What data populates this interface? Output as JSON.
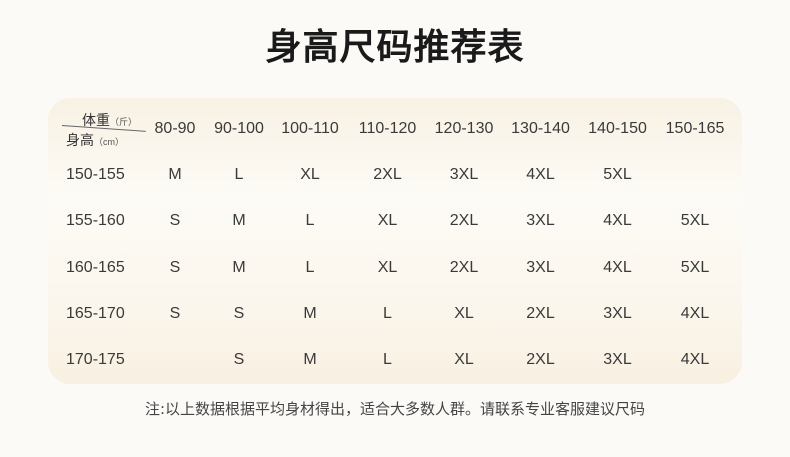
{
  "title": "身高尺码推荐表",
  "table": {
    "corner": {
      "weight_label": "体重",
      "weight_unit": "（斤）",
      "height_label": "身高",
      "height_unit": "（cm）"
    },
    "columns": [
      "80-90",
      "90-100",
      "100-110",
      "110-120",
      "120-130",
      "130-140",
      "140-150",
      "150-165"
    ],
    "rows": [
      {
        "height": "150-155",
        "sizes": [
          "M",
          "L",
          "XL",
          "2XL",
          "3XL",
          "4XL",
          "5XL",
          ""
        ]
      },
      {
        "height": "155-160",
        "sizes": [
          "S",
          "M",
          "L",
          "XL",
          "2XL",
          "3XL",
          "4XL",
          "5XL"
        ]
      },
      {
        "height": "160-165",
        "sizes": [
          "S",
          "M",
          "L",
          "XL",
          "2XL",
          "3XL",
          "4XL",
          "5XL"
        ]
      },
      {
        "height": "165-170",
        "sizes": [
          "S",
          "S",
          "M",
          "L",
          "XL",
          "2XL",
          "3XL",
          "4XL"
        ]
      },
      {
        "height": "170-175",
        "sizes": [
          "",
          "S",
          "M",
          "L",
          "XL",
          "2XL",
          "3XL",
          "4XL"
        ]
      }
    ]
  },
  "note": "注:以上数据根据平均身材得出，适合大多数人群。请联系专业客服建议尺码"
}
